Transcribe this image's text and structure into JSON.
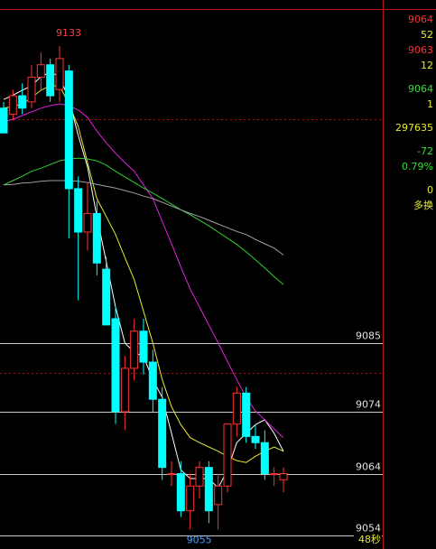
{
  "chart_data": {
    "type": "candlestick",
    "ylim": [
      9053,
      9139
    ],
    "yticks": [
      9085,
      9074,
      9064,
      9054
    ],
    "grid": true,
    "up_color": "#ff3232",
    "down_color": "#00ffff",
    "ref_lines": [
      9121.2,
      9080.2
    ],
    "ref_color": "#b01010",
    "open": [
      9123,
      9122,
      9125,
      9124,
      9128,
      9130,
      9126,
      9129,
      9110,
      9103,
      9106,
      9097,
      9089,
      9074,
      9081,
      9087,
      9082,
      9076,
      9064,
      9064,
      9058,
      9062,
      9065,
      9059,
      9062,
      9072,
      9077,
      9070,
      9069,
      9064,
      9063
    ],
    "high": [
      9124,
      9126,
      9127,
      9130,
      9132,
      9131,
      9133,
      9130,
      9112,
      9111,
      9108,
      9099,
      9091,
      9083,
      9089,
      9089,
      9084,
      9078,
      9066,
      9066,
      9064,
      9066,
      9066,
      9064,
      9072,
      9078,
      9078,
      9072,
      9071,
      9065,
      9065
    ],
    "low": [
      9119,
      9121,
      9122,
      9123,
      9126,
      9124,
      9124,
      9102,
      9092,
      9100,
      9096,
      9088,
      9072,
      9071,
      9079,
      9080,
      9074,
      9063,
      9062,
      9057,
      9055,
      9060,
      9056,
      9055,
      9061,
      9070,
      9069,
      9068,
      9063,
      9062,
      9061
    ],
    "close": [
      9119,
      9125,
      9123,
      9128,
      9130,
      9125,
      9131,
      9110,
      9103,
      9106,
      9098,
      9088,
      9074,
      9081,
      9087,
      9082,
      9076,
      9065,
      9064,
      9058,
      9062,
      9065,
      9058,
      9062,
      9072,
      9077,
      9070,
      9069,
      9064,
      9064,
      9064
    ],
    "lines": [
      {
        "color": "#ffffff",
        "values": [
          9124.4,
          9125.1,
          9125.9,
          9126.6,
          9128.1,
          9128.8,
          9128.1,
          9124.4,
          9118.6,
          9113.5,
          9105.5,
          9098.2,
          9090.9,
          9085.1,
          9083.6,
          9082.9,
          9079.2,
          9076.3,
          9070.5,
          9064.6,
          9063.2,
          9063.2,
          9063.2,
          9061.7,
          9064.6,
          9069.0,
          9070.5,
          9071.9,
          9072.7,
          9070.5,
          9067.6
        ]
      },
      {
        "color": "#e8e830",
        "values": [
          9123.0,
          9123.3,
          9123.7,
          9124.7,
          9125.9,
          9126.6,
          9126.6,
          9123.7,
          9120.0,
          9114.2,
          9108.4,
          9105.5,
          9102.6,
          9098.9,
          9095.3,
          9090.2,
          9085.1,
          9079.2,
          9074.8,
          9071.9,
          9069.8,
          9069.0,
          9068.3,
          9067.6,
          9066.8,
          9066.1,
          9065.8,
          9066.8,
          9067.6,
          9068.3,
          9067.6
        ]
      },
      {
        "color": "#e020e0",
        "values": [
          9120.8,
          9121.2,
          9121.8,
          9122.4,
          9123.0,
          9123.4,
          9123.7,
          9123.4,
          9122.7,
          9121.5,
          9119.3,
          9117.4,
          9115.7,
          9114.2,
          9112.8,
          9110.6,
          9108.4,
          9104.7,
          9101.1,
          9097.4,
          9093.8,
          9090.9,
          9088.0,
          9085.1,
          9082.1,
          9079.2,
          9076.3,
          9074.1,
          9072.7,
          9071.2,
          9069.8
        ]
      },
      {
        "color": "#30d030",
        "values": [
          9110.6,
          9111.3,
          9112.0,
          9112.8,
          9113.3,
          9113.9,
          9114.5,
          9114.8,
          9114.9,
          9114.8,
          9114.5,
          9113.8,
          9112.8,
          9111.9,
          9111.0,
          9110.1,
          9109.3,
          9108.4,
          9107.5,
          9106.6,
          9105.8,
          9104.9,
          9104.0,
          9103.0,
          9102.0,
          9101.0,
          9099.8,
          9098.5,
          9097.2,
          9095.8,
          9094.5
        ]
      },
      {
        "color": "#a0a0a0",
        "values": [
          9110.6,
          9110.7,
          9110.9,
          9111.0,
          9111.2,
          9111.3,
          9111.3,
          9111.3,
          9111.2,
          9111.0,
          9110.7,
          9110.4,
          9110.1,
          9109.7,
          9109.3,
          9108.8,
          9108.4,
          9107.8,
          9107.2,
          9106.6,
          9106.0,
          9105.5,
          9104.9,
          9104.3,
          9103.7,
          9103.1,
          9102.6,
          9101.8,
          9101.1,
          9100.4,
          9099.3
        ]
      }
    ],
    "annotations": [
      {
        "text": "9133",
        "value": 9133,
        "index": 6,
        "color": "#ff4040"
      },
      {
        "text": "9055",
        "value": 9055,
        "index": 20,
        "color": "#4aa0ff"
      }
    ],
    "countdown": "48秒"
  },
  "quote_panel": [
    {
      "text": "9064",
      "color": "#ff3232"
    },
    {
      "text": "52",
      "color": "#e8e830"
    },
    {
      "text": "9063",
      "color": "#ff3232"
    },
    {
      "text": "12",
      "color": "#e8e830"
    },
    {
      "text": "9064",
      "color": "#30e030"
    },
    {
      "text": "1",
      "color": "#e8e830"
    },
    {
      "text": "297635",
      "color": "#e8e830"
    },
    {
      "text": "-72",
      "color": "#30e030"
    },
    {
      "text": "0.79%",
      "color": "#30e030"
    },
    {
      "text": "0",
      "color": "#e8e830"
    },
    {
      "text": "多换",
      "color": "#e8e830"
    }
  ]
}
